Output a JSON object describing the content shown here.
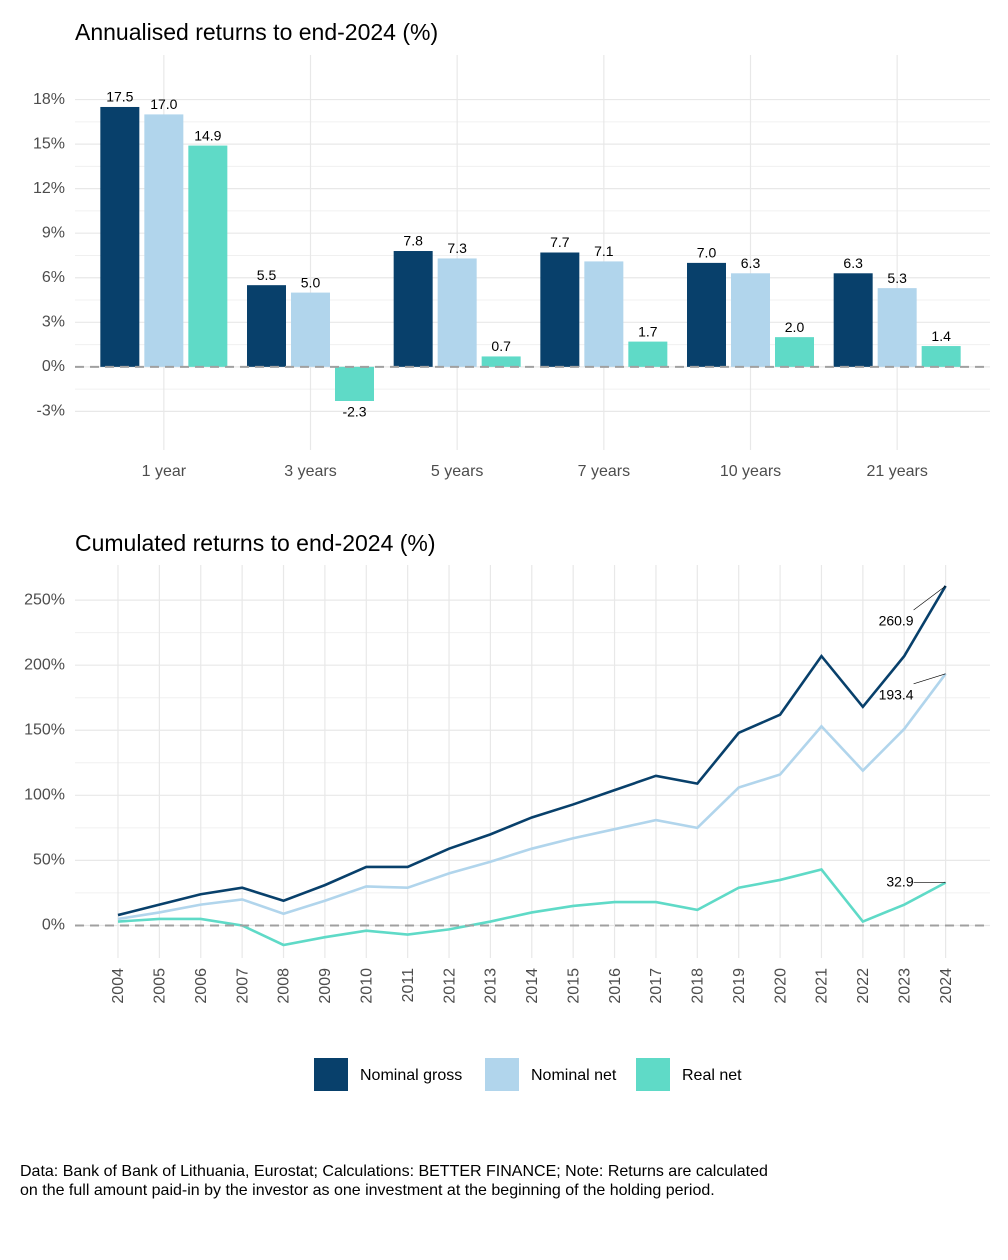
{
  "chart_data": [
    {
      "type": "bar",
      "title": "Annualised returns to end-2024 (%)",
      "categories": [
        "1 year",
        "3 years",
        "5 years",
        "7 years",
        "10 years",
        "21 years"
      ],
      "series": [
        {
          "name": "Nominal gross",
          "color": "#08406b",
          "values": [
            17.5,
            5.5,
            7.8,
            7.7,
            7.0,
            6.3
          ],
          "value_labels": [
            "17.5",
            "5.5",
            "7.8",
            "7.7",
            "7.0",
            "6.3"
          ]
        },
        {
          "name": "Nominal net",
          "color": "#b1d5ec",
          "values": [
            17.0,
            5.0,
            7.3,
            7.1,
            6.3,
            5.3
          ],
          "value_labels": [
            "17.0",
            "5.0",
            "7.3",
            "7.1",
            "6.3",
            "5.3"
          ]
        },
        {
          "name": "Real net",
          "color": "#5fdac7",
          "values": [
            14.9,
            -2.3,
            0.7,
            1.7,
            2.0,
            1.4
          ],
          "value_labels": [
            "14.9",
            "-2.3",
            "0.7",
            "1.7",
            "2.0",
            "1.4"
          ]
        }
      ],
      "ylim": [
        -5.6,
        21
      ],
      "yticks": [
        {
          "value": -3,
          "label": "-3%"
        },
        {
          "value": 0,
          "label": "0%"
        },
        {
          "value": 3,
          "label": "3%"
        },
        {
          "value": 6,
          "label": "6%"
        },
        {
          "value": 9,
          "label": "9%"
        },
        {
          "value": 12,
          "label": "12%"
        },
        {
          "value": 15,
          "label": "15%"
        },
        {
          "value": 18,
          "label": "18%"
        }
      ],
      "grid": true
    },
    {
      "type": "line",
      "title": "Cumulated returns to end-2024 (%)",
      "categories": [
        "2004",
        "2005",
        "2006",
        "2007",
        "2008",
        "2009",
        "2010",
        "2011",
        "2012",
        "2013",
        "2014",
        "2015",
        "2016",
        "2017",
        "2018",
        "2019",
        "2020",
        "2021",
        "2022",
        "2023",
        "2024"
      ],
      "series": [
        {
          "name": "Nominal gross",
          "color": "#08406b",
          "values": [
            8,
            16,
            24,
            29,
            19,
            31,
            45,
            45,
            59,
            70,
            83,
            93,
            104,
            115,
            109,
            148,
            162,
            207,
            168,
            207,
            260.9
          ]
        },
        {
          "name": "Nominal net",
          "color": "#b1d5ec",
          "values": [
            5,
            10,
            16,
            20,
            9,
            19,
            30,
            29,
            40,
            49,
            59,
            67,
            74,
            81,
            75,
            106,
            116,
            153,
            119,
            151,
            193.4
          ]
        },
        {
          "name": "Real net",
          "color": "#5fdac7",
          "values": [
            3,
            5,
            5,
            0,
            -15,
            -9,
            -4,
            -7,
            -3,
            3,
            10,
            15,
            18,
            18,
            12,
            29,
            35,
            43,
            3,
            16,
            32.9
          ]
        }
      ],
      "ylim": [
        -25,
        277
      ],
      "yticks": [
        {
          "value": 0,
          "label": "0%"
        },
        {
          "value": 50,
          "label": "50%"
        },
        {
          "value": 100,
          "label": "100%"
        },
        {
          "value": 150,
          "label": "150%"
        },
        {
          "value": 200,
          "label": "200%"
        },
        {
          "value": 250,
          "label": "250%"
        }
      ],
      "grid": true,
      "label_last": true
    }
  ],
  "note": "Data: Bank of Bank of Lithuania, Eurostat; Calculations: BETTER FINANCE; Note: Returns are calculated on the full amount paid-in by the investor as one investment at the beginning of the holding period."
}
